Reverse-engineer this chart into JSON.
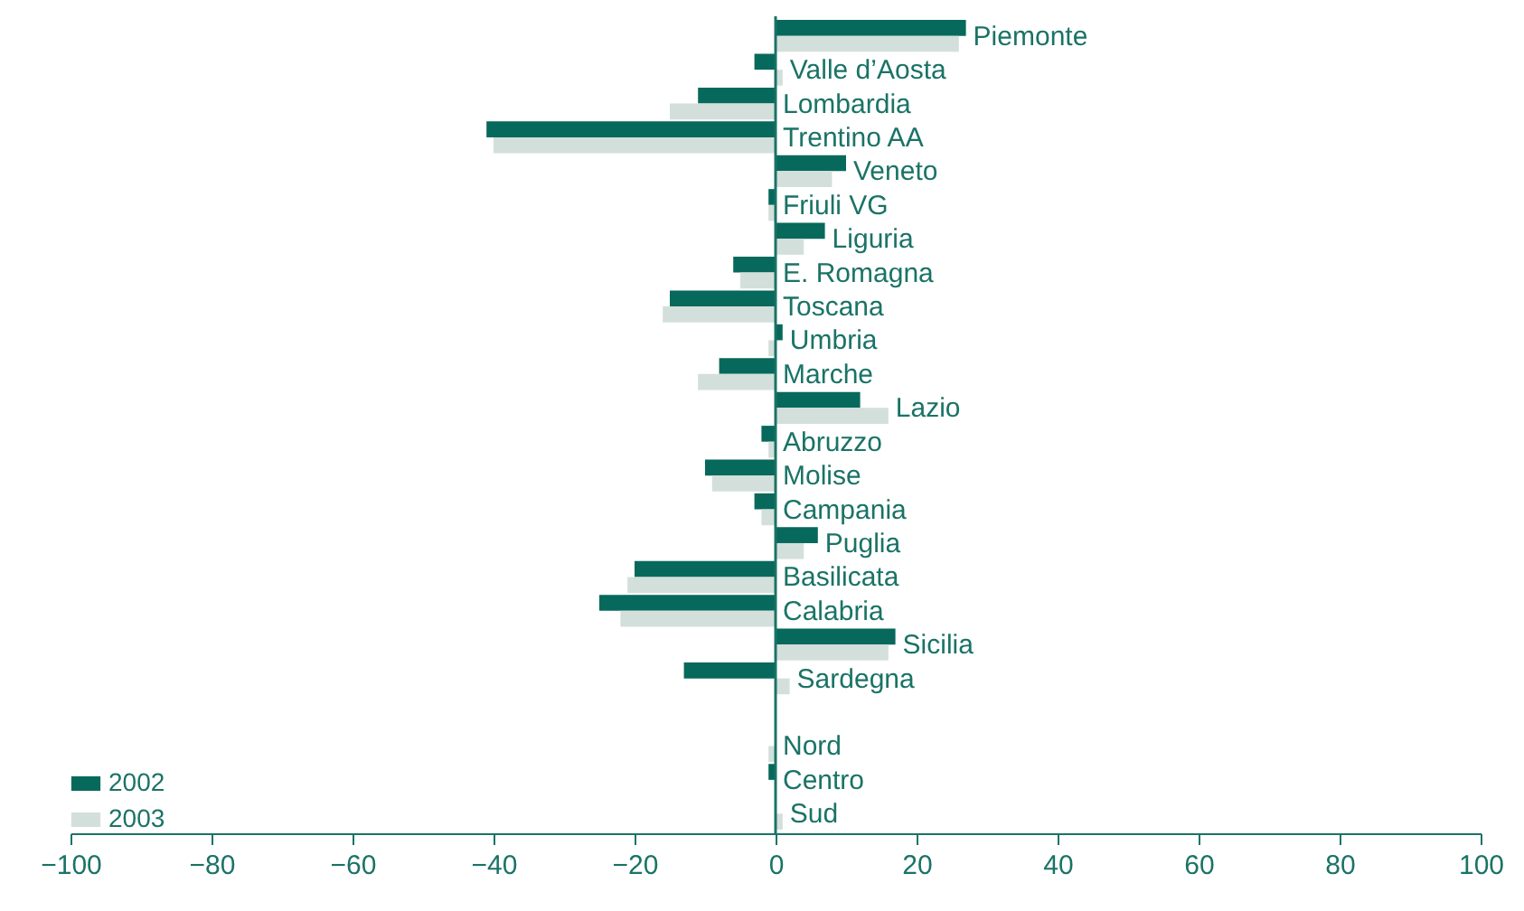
{
  "chart_data": {
    "type": "bar",
    "orientation": "horizontal",
    "categories": [
      "Piemonte",
      "Valle d’Aosta",
      "Lombardia",
      "Trentino AA",
      "Veneto",
      "Friuli VG",
      "Liguria",
      "E. Romagna",
      "Toscana",
      "Umbria",
      "Marche",
      "Lazio",
      "Abruzzo",
      "Molise",
      "Campania",
      "Puglia",
      "Basilicata",
      "Calabria",
      "Sicilia",
      "Sardegna",
      null,
      "Nord",
      "Centro",
      "Sud"
    ],
    "series": [
      {
        "name": "2002",
        "color": "#07695b",
        "values": [
          27,
          -3,
          -11,
          -41,
          10,
          -1,
          7,
          -6,
          -15,
          1,
          -8,
          12,
          -2,
          -10,
          -3,
          6,
          -20,
          -25,
          17,
          -13,
          null,
          0,
          -1,
          0
        ]
      },
      {
        "name": "2003",
        "color": "#d3dfdb",
        "values": [
          26,
          1,
          -15,
          -40,
          8,
          -1,
          4,
          -5,
          -16,
          -1,
          -11,
          16,
          -1,
          -9,
          -2,
          4,
          -21,
          -22,
          16,
          2,
          null,
          -1,
          0,
          1
        ]
      }
    ],
    "xlim": [
      -100,
      100
    ],
    "xticks": [
      -100,
      -80,
      -60,
      -40,
      -20,
      0,
      20,
      40,
      60,
      80,
      100
    ],
    "grid": false,
    "legend": "bottom left"
  }
}
